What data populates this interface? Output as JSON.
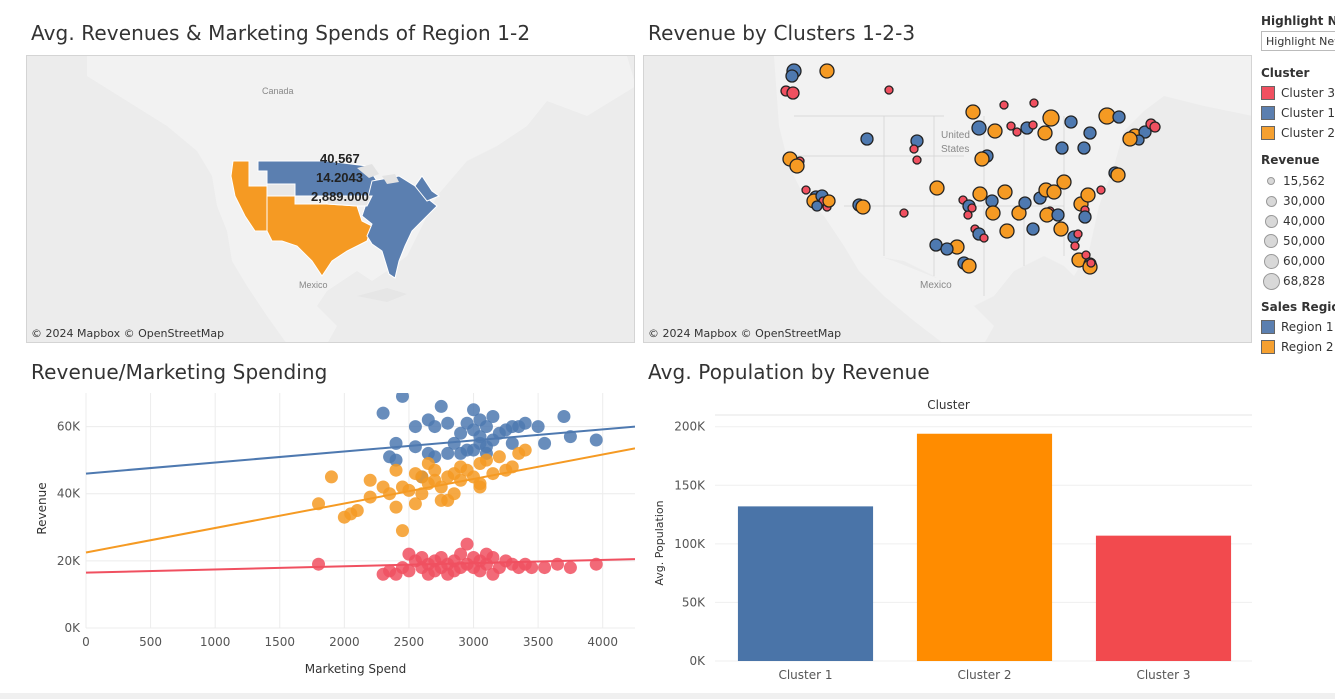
{
  "titles": {
    "map1": "Avg. Revenues & Marketing Spends of Region 1-2",
    "map2": "Revenue by Clusters 1-2-3",
    "scatter": "Revenue/Marketing Spending",
    "bar": "Avg. Population by Revenue"
  },
  "map_attribution": "© 2024 Mapbox  © OpenStreetMap",
  "map_labels": {
    "canada": "Canada",
    "mexico": "Mexico",
    "united_states_1": "United",
    "united_states_2": "States",
    "mexico_2": "Mexico"
  },
  "map1_tooltip": {
    "line1": "40,567",
    "line2": "14.2043",
    "line3": "2,889.000"
  },
  "legend": {
    "highlight_header": "Highlight New",
    "highlight_value": "Highlight New",
    "cluster_header": "Cluster",
    "clusters": [
      {
        "label": "Cluster 3",
        "color": "#f05060"
      },
      {
        "label": "Cluster 1",
        "color": "#5b7fb0"
      },
      {
        "label": "Cluster 2",
        "color": "#f5a030"
      }
    ],
    "revenue_header": "Revenue",
    "revenue_sizes": [
      "15,562",
      "30,000",
      "40,000",
      "50,000",
      "60,000",
      "68,828"
    ],
    "region_header": "Sales Region",
    "regions": [
      {
        "label": "Region 1",
        "color": "#5b7fb0"
      },
      {
        "label": "Region 2",
        "color": "#f5a030"
      }
    ]
  },
  "colors": {
    "blue": "#4e79b0",
    "orange": "#f59a23",
    "red": "#f05060",
    "bar_blue": "#4a74a8",
    "bar_orange": "#ff8c00",
    "bar_red": "#f24a4e"
  },
  "chart_data": [
    {
      "type": "scatter",
      "title": "Revenue/Marketing Spending",
      "xlabel": "Marketing Spend",
      "ylabel": "Revenue",
      "xlim": [
        0,
        4250
      ],
      "ylim": [
        0,
        70000
      ],
      "x_ticks": [
        "0",
        "500",
        "1000",
        "1500",
        "2000",
        "2500",
        "3000",
        "3500",
        "4000"
      ],
      "y_ticks": [
        "0K",
        "20K",
        "40K",
        "60K"
      ],
      "grid": true,
      "series": [
        {
          "color": "blue",
          "trend": [
            [
              0,
              46000
            ],
            [
              4250,
              60000
            ]
          ],
          "points": [
            [
              2300,
              64000
            ],
            [
              2450,
              69000
            ],
            [
              2350,
              51000
            ],
            [
              2400,
              55000
            ],
            [
              2400,
              50000
            ],
            [
              2550,
              54000
            ],
            [
              2550,
              60000
            ],
            [
              2650,
              62000
            ],
            [
              2700,
              60000
            ],
            [
              2750,
              66000
            ],
            [
              2800,
              61000
            ],
            [
              2850,
              55000
            ],
            [
              2900,
              58000
            ],
            [
              2950,
              53000
            ],
            [
              2950,
              61000
            ],
            [
              3000,
              59000
            ],
            [
              3000,
              65000
            ],
            [
              3050,
              62000
            ],
            [
              3050,
              57000
            ],
            [
              3100,
              54000
            ],
            [
              3100,
              60000
            ],
            [
              3150,
              63000
            ],
            [
              3150,
              56000
            ],
            [
              3200,
              58000
            ],
            [
              3250,
              59000
            ],
            [
              3300,
              60000
            ],
            [
              3350,
              60000
            ],
            [
              3400,
              61000
            ],
            [
              3500,
              60000
            ],
            [
              3550,
              55000
            ],
            [
              3700,
              63000
            ],
            [
              3750,
              57000
            ],
            [
              3950,
              56000
            ],
            [
              2700,
              51000
            ],
            [
              2800,
              52000
            ],
            [
              2600,
              45000
            ],
            [
              2650,
              52000
            ],
            [
              2900,
              52000
            ],
            [
              3000,
              53000
            ],
            [
              3050,
              55000
            ],
            [
              3100,
              52000
            ],
            [
              3300,
              55000
            ]
          ]
        },
        {
          "color": "orange",
          "trend": [
            [
              0,
              22500
            ],
            [
              4250,
              53500
            ]
          ],
          "points": [
            [
              1800,
              37000
            ],
            [
              1900,
              45000
            ],
            [
              2000,
              33000
            ],
            [
              2050,
              34000
            ],
            [
              2100,
              35000
            ],
            [
              2200,
              44000
            ],
            [
              2200,
              39000
            ],
            [
              2300,
              42000
            ],
            [
              2350,
              40000
            ],
            [
              2400,
              36000
            ],
            [
              2400,
              47000
            ],
            [
              2450,
              29000
            ],
            [
              2450,
              42000
            ],
            [
              2500,
              41000
            ],
            [
              2550,
              37000
            ],
            [
              2600,
              45000
            ],
            [
              2600,
              40000
            ],
            [
              2650,
              43000
            ],
            [
              2650,
              49000
            ],
            [
              2700,
              47000
            ],
            [
              2700,
              44000
            ],
            [
              2750,
              42000
            ],
            [
              2750,
              38000
            ],
            [
              2800,
              45000
            ],
            [
              2850,
              46000
            ],
            [
              2850,
              40000
            ],
            [
              2900,
              44000
            ],
            [
              2900,
              48000
            ],
            [
              2950,
              47000
            ],
            [
              3000,
              45000
            ],
            [
              3050,
              49000
            ],
            [
              3050,
              42000
            ],
            [
              3100,
              50000
            ],
            [
              3150,
              46000
            ],
            [
              3200,
              51000
            ],
            [
              3250,
              47000
            ],
            [
              3300,
              48000
            ],
            [
              3350,
              52000
            ],
            [
              3400,
              53000
            ],
            [
              2550,
              46000
            ],
            [
              2800,
              38000
            ],
            [
              3050,
              43000
            ]
          ]
        },
        {
          "color": "red",
          "trend": [
            [
              0,
              16500
            ],
            [
              4250,
              20500
            ]
          ],
          "points": [
            [
              1800,
              19000
            ],
            [
              2300,
              16000
            ],
            [
              2350,
              17000
            ],
            [
              2400,
              16000
            ],
            [
              2450,
              18000
            ],
            [
              2500,
              17000
            ],
            [
              2550,
              20000
            ],
            [
              2600,
              21000
            ],
            [
              2600,
              18000
            ],
            [
              2650,
              19000
            ],
            [
              2650,
              16000
            ],
            [
              2700,
              17000
            ],
            [
              2700,
              20000
            ],
            [
              2750,
              18000
            ],
            [
              2750,
              21000
            ],
            [
              2800,
              19000
            ],
            [
              2800,
              16000
            ],
            [
              2850,
              17000
            ],
            [
              2850,
              20000
            ],
            [
              2900,
              18000
            ],
            [
              2900,
              22000
            ],
            [
              2950,
              19000
            ],
            [
              2950,
              25000
            ],
            [
              3000,
              21000
            ],
            [
              3000,
              18000
            ],
            [
              3050,
              20000
            ],
            [
              3050,
              17000
            ],
            [
              3100,
              22000
            ],
            [
              3100,
              19000
            ],
            [
              3150,
              16000
            ],
            [
              3150,
              21000
            ],
            [
              3200,
              18000
            ],
            [
              3250,
              20000
            ],
            [
              3300,
              19000
            ],
            [
              3350,
              18000
            ],
            [
              3400,
              19000
            ],
            [
              3450,
              18000
            ],
            [
              3550,
              18000
            ],
            [
              3650,
              19000
            ],
            [
              3750,
              18000
            ],
            [
              3950,
              19000
            ],
            [
              2500,
              22000
            ]
          ]
        }
      ]
    },
    {
      "type": "bar",
      "title": "Avg. Population by Revenue",
      "header": "Cluster",
      "ylabel": "Avg. Population",
      "categories": [
        "Cluster 1",
        "Cluster 2",
        "Cluster 3"
      ],
      "values": [
        132000,
        194000,
        107000
      ],
      "ylim": [
        0,
        210000
      ],
      "y_ticks": [
        "0K",
        "50K",
        "100K",
        "150K",
        "200K"
      ],
      "bar_colors": [
        "bar_blue",
        "bar_orange",
        "bar_red"
      ]
    }
  ],
  "map2_points": [
    [
      "b",
      793,
      70,
      7
    ],
    [
      "b",
      791,
      75,
      6
    ],
    [
      "o",
      826,
      70,
      7
    ],
    [
      "r",
      785,
      90,
      5
    ],
    [
      "r",
      792,
      92,
      6
    ],
    [
      "r",
      888,
      89,
      4
    ],
    [
      "o",
      972,
      111,
      7
    ],
    [
      "r",
      1003,
      104,
      4
    ],
    [
      "r",
      1033,
      102,
      4
    ],
    [
      "o",
      1050,
      117,
      8
    ],
    [
      "b",
      1026,
      127,
      6
    ],
    [
      "r",
      1032,
      124,
      4
    ],
    [
      "b",
      1070,
      121,
      6
    ],
    [
      "b",
      1089,
      132,
      6
    ],
    [
      "o",
      1106,
      115,
      8
    ],
    [
      "b",
      1118,
      116,
      6
    ],
    [
      "o",
      994,
      130,
      7
    ],
    [
      "b",
      978,
      127,
      7
    ],
    [
      "r",
      1010,
      125,
      4
    ],
    [
      "r",
      1016,
      131,
      4
    ],
    [
      "o",
      1044,
      132,
      7
    ],
    [
      "o",
      1134,
      135,
      7
    ],
    [
      "b",
      1144,
      131,
      6
    ],
    [
      "b",
      1138,
      139,
      5
    ],
    [
      "r",
      1150,
      123,
      5
    ],
    [
      "r",
      1154,
      126,
      5
    ],
    [
      "b",
      866,
      138,
      6
    ],
    [
      "b",
      916,
      140,
      6
    ],
    [
      "r",
      913,
      148,
      4
    ],
    [
      "r",
      916,
      159,
      4
    ],
    [
      "b",
      986,
      155,
      6
    ],
    [
      "o",
      981,
      158,
      7
    ],
    [
      "b",
      1061,
      147,
      6
    ],
    [
      "b",
      1083,
      147,
      6
    ],
    [
      "o",
      1129,
      138,
      7
    ],
    [
      "o",
      789,
      158,
      7
    ],
    [
      "r",
      799,
      160,
      4
    ],
    [
      "o",
      796,
      165,
      7
    ],
    [
      "r",
      805,
      189,
      4
    ],
    [
      "b",
      815,
      196,
      6
    ],
    [
      "o",
      813,
      200,
      7
    ],
    [
      "b",
      821,
      195,
      6
    ],
    [
      "r",
      822,
      200,
      4
    ],
    [
      "r",
      826,
      206,
      4
    ],
    [
      "b",
      816,
      205,
      5
    ],
    [
      "o",
      828,
      200,
      6
    ],
    [
      "b",
      858,
      204,
      6
    ],
    [
      "o",
      862,
      206,
      7
    ],
    [
      "r",
      903,
      212,
      4
    ],
    [
      "o",
      936,
      187,
      7
    ],
    [
      "r",
      962,
      199,
      4
    ],
    [
      "b",
      968,
      205,
      6
    ],
    [
      "r",
      967,
      214,
      4
    ],
    [
      "r",
      971,
      207,
      4
    ],
    [
      "o",
      1004,
      191,
      7
    ],
    [
      "o",
      979,
      193,
      7
    ],
    [
      "b",
      991,
      200,
      6
    ],
    [
      "o",
      992,
      212,
      7
    ],
    [
      "o",
      1018,
      212,
      7
    ],
    [
      "b",
      1024,
      202,
      6
    ],
    [
      "b",
      1039,
      197,
      6
    ],
    [
      "o",
      1045,
      189,
      7
    ],
    [
      "o",
      1053,
      191,
      7
    ],
    [
      "o",
      1063,
      181,
      7
    ],
    [
      "r",
      1049,
      210,
      4
    ],
    [
      "o",
      1046,
      214,
      7
    ],
    [
      "b",
      1057,
      214,
      6
    ],
    [
      "o",
      1080,
      203,
      7
    ],
    [
      "r",
      1084,
      209,
      4
    ],
    [
      "b",
      1084,
      216,
      6
    ],
    [
      "o",
      1087,
      194,
      7
    ],
    [
      "b",
      1114,
      172,
      6
    ],
    [
      "r",
      1116,
      175,
      4
    ],
    [
      "r",
      1100,
      189,
      4
    ],
    [
      "o",
      1117,
      174,
      7
    ],
    [
      "b",
      935,
      244,
      6
    ],
    [
      "o",
      956,
      246,
      7
    ],
    [
      "b",
      946,
      248,
      6
    ],
    [
      "r",
      974,
      228,
      4
    ],
    [
      "b",
      978,
      233,
      6
    ],
    [
      "o",
      1006,
      230,
      7
    ],
    [
      "b",
      1032,
      228,
      6
    ],
    [
      "r",
      983,
      237,
      4
    ],
    [
      "o",
      1060,
      228,
      7
    ],
    [
      "b",
      1073,
      236,
      6
    ],
    [
      "r",
      1077,
      233,
      4
    ],
    [
      "r",
      1074,
      245,
      4
    ],
    [
      "o",
      1078,
      259,
      7
    ],
    [
      "r",
      1085,
      254,
      4
    ],
    [
      "b",
      1089,
      263,
      6
    ],
    [
      "o",
      1089,
      266,
      7
    ],
    [
      "r",
      1090,
      262,
      4
    ],
    [
      "b",
      963,
      262,
      6
    ],
    [
      "o",
      968,
      265,
      7
    ]
  ]
}
